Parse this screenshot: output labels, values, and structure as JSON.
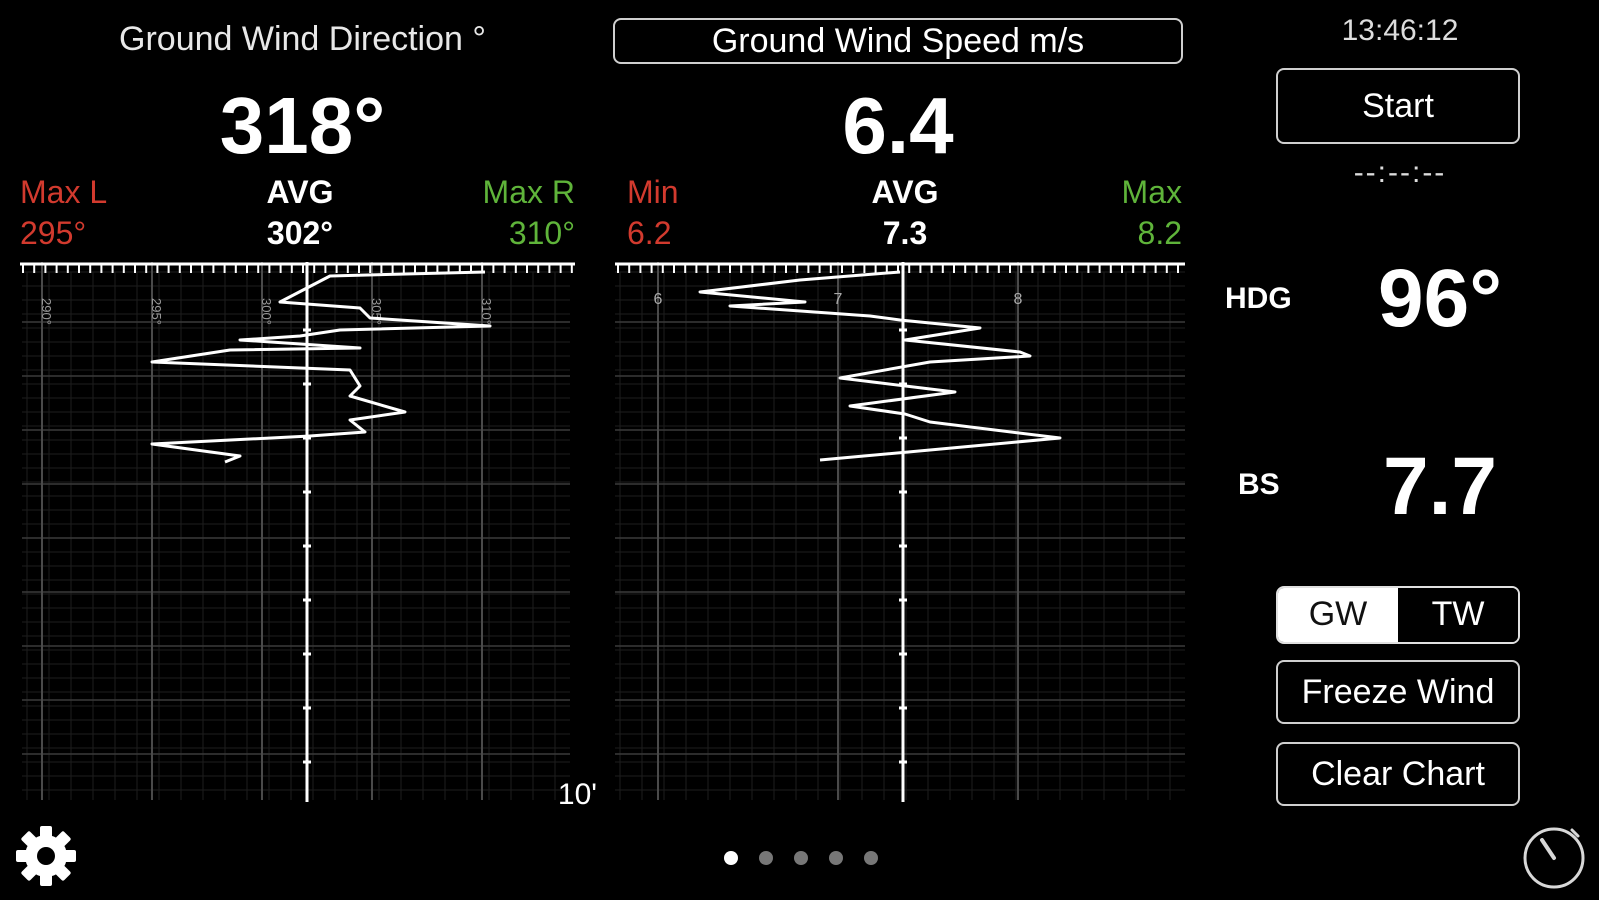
{
  "direction": {
    "header": "Ground Wind Direction °",
    "value": "318°",
    "max_l_label": "Max L",
    "max_l_value": "295°",
    "avg_label": "AVG",
    "avg_value": "302°",
    "max_r_label": "Max R",
    "max_r_value": "310°",
    "ticks": [
      "290°",
      "295°",
      "300°",
      "305°",
      "310°"
    ],
    "footer": "10'"
  },
  "speed": {
    "header": "Ground Wind Speed m/s",
    "value": "6.4",
    "min_label": "Min",
    "min_value": "6.2",
    "avg_label": "AVG",
    "avg_value": "7.3",
    "max_label": "Max",
    "max_value": "8.2",
    "ticks": [
      "6",
      "7",
      "8"
    ]
  },
  "side": {
    "clock": "13:46:12",
    "start_label": "Start",
    "timer": "--:--:--",
    "hdg_label": "HDG",
    "hdg_value": "96°",
    "bs_label": "BS",
    "bs_value": "7.7",
    "seg_gw": "GW",
    "seg_tw": "TW",
    "freeze_label": "Freeze Wind",
    "clear_label": "Clear Chart"
  },
  "pager": {
    "count": 5,
    "active": 0
  },
  "icons": {
    "settings": "gear-icon",
    "timer": "stopwatch-icon"
  },
  "colors": {
    "min": "#d23a2e",
    "max": "#5fb43a"
  }
}
